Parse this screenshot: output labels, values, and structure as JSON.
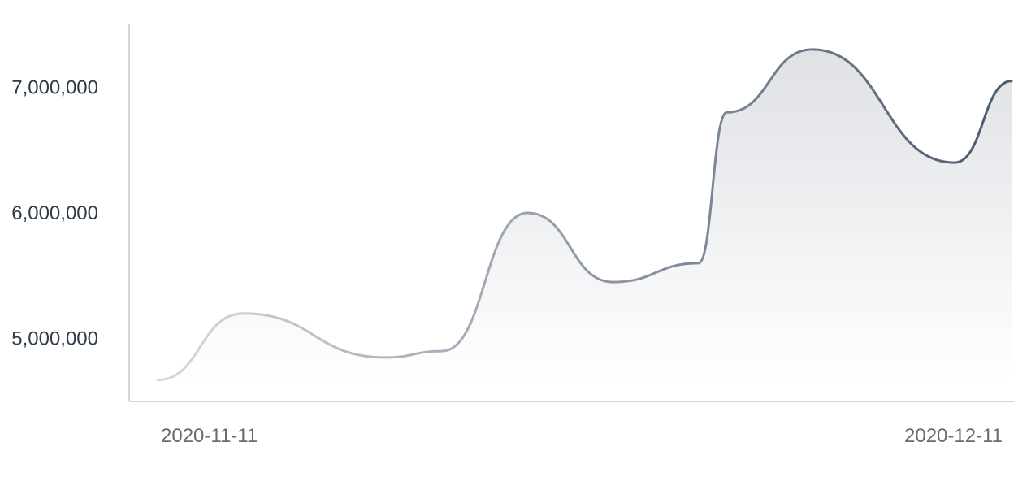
{
  "chart_data": {
    "type": "area",
    "title": "",
    "xlabel": "",
    "ylabel": "",
    "x": [
      "2020-11-11",
      "2020-11-14",
      "2020-11-19",
      "2020-11-21",
      "2020-11-24",
      "2020-11-27",
      "2020-11-30",
      "2020-12-01",
      "2020-12-04",
      "2020-12-09",
      "2020-12-11"
    ],
    "series": [
      {
        "values": [
          4670000,
          5200000,
          4850000,
          4900000,
          6000000,
          5450000,
          5600000,
          6800000,
          7300000,
          6400000,
          7050000
        ]
      }
    ],
    "ylim": [
      4500000,
      7500000
    ],
    "y_ticks": [
      {
        "value": 5000000,
        "label": "5,000,000"
      },
      {
        "value": 6000000,
        "label": "6,000,000"
      },
      {
        "value": 7000000,
        "label": "7,000,000"
      }
    ],
    "x_ticks": [
      {
        "date": "2020-11-11",
        "label": "2020-11-11"
      },
      {
        "date": "2020-12-11",
        "label": "2020-12-11"
      }
    ],
    "grid": false,
    "legend": "none",
    "colors": {
      "line_end": "#4a5a6e",
      "line_start": "#d6d9df",
      "fill_top": "#dfe1e5",
      "fill_bottom": "#ffffff",
      "axis": "#d6d6d6",
      "y_tick_text": "#2f3b48",
      "x_tick_text": "#6b6b6b"
    }
  }
}
